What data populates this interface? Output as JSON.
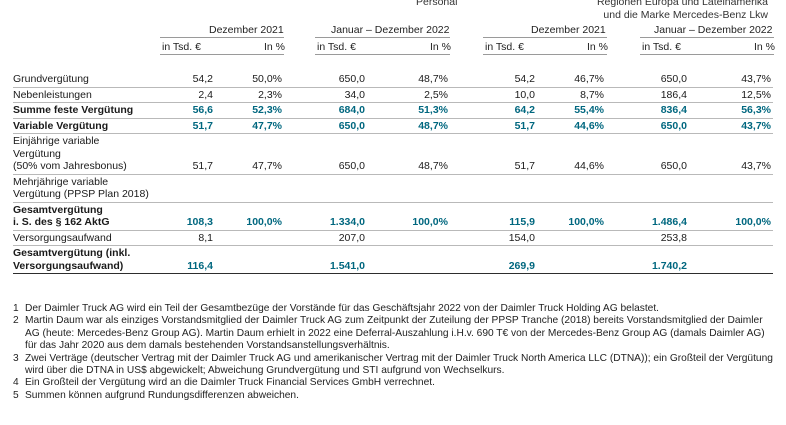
{
  "top_right_note": [
    "Regionen Europa und Lateinamerika",
    "und die Marke Mercedes-Benz Lkw"
  ],
  "top_partial": "Personal",
  "period_headers": [
    "Dezember 2021",
    "Januar – Dezember 2022",
    "Dezember 2021",
    "Januar – Dezember 2022"
  ],
  "unit_headers": [
    "in Tsd. €",
    "In %",
    "in Tsd. €",
    "In %",
    "in Tsd. €",
    "In %",
    "in Tsd. €",
    "In %"
  ],
  "rows": [
    {
      "label": [
        "Grundvergütung"
      ],
      "values": [
        "54,2",
        "50,0%",
        "650,0",
        "48,7%",
        "54,2",
        "46,7%",
        "650,0",
        "43,7%"
      ]
    },
    {
      "label": [
        "Nebenleistungen"
      ],
      "values": [
        "2,4",
        "2,3%",
        "34,0",
        "2,5%",
        "10,0",
        "8,7%",
        "186,4",
        "12,5%"
      ]
    },
    {
      "label": [
        "Summe feste Vergütung"
      ],
      "bold": true,
      "values": [
        "56,6",
        "52,3%",
        "684,0",
        "51,3%",
        "64,2",
        "55,4%",
        "836,4",
        "56,3%"
      ]
    },
    {
      "label": [
        "Variable Vergütung"
      ],
      "bold": true,
      "values": [
        "51,7",
        "47,7%",
        "650,0",
        "48,7%",
        "51,7",
        "44,6%",
        "650,0",
        "43,7%"
      ]
    },
    {
      "label": [
        "Einjährige variable",
        "Vergütung",
        "(50% vom Jahresbonus)"
      ],
      "values": [
        "51,7",
        "47,7%",
        "650,0",
        "48,7%",
        "51,7",
        "44,6%",
        "650,0",
        "43,7%"
      ]
    },
    {
      "label": [
        "Mehrjährige variable",
        "Vergütung (PPSP Plan 2018)"
      ],
      "values": [
        "",
        "",
        "",
        "",
        "",
        "",
        "",
        ""
      ]
    },
    {
      "label": [
        "Gesamtvergütung",
        "i. S. des § 162 AktG"
      ],
      "bold": true,
      "values": [
        "108,3",
        "100,0%",
        "1.334,0",
        "100,0%",
        "115,9",
        "100,0%",
        "1.486,4",
        "100,0%"
      ]
    },
    {
      "label": [
        "Versorgungsaufwand"
      ],
      "values": [
        "8,1",
        "",
        "207,0",
        "",
        "154,0",
        "",
        "253,8",
        ""
      ]
    },
    {
      "label": [
        "Gesamtvergütung (inkl.",
        "Versorgungsaufwand)"
      ],
      "bold": true,
      "values": [
        "116,4",
        "",
        "1.541,0",
        "",
        "269,9",
        "",
        "1.740,2",
        ""
      ]
    }
  ],
  "footnotes": [
    {
      "n": "1",
      "text": "Der Daimler Truck AG wird ein Teil der Gesamtbezüge der Vorstände für das Geschäftsjahr 2022 von der Daimler Truck Holding AG belastet."
    },
    {
      "n": "2",
      "text": "Martin Daum war als einziges Vorstandsmitglied der Daimler Truck AG zum Zeitpunkt der Zuteilung der PPSP Tranche (2018) bereits Vorstandsmitglied der Daimler AG (heute: Mercedes-Benz Group AG). Martin Daum erhielt in 2022 eine Deferral-Auszahlung i.H.v. 690 T€ von der Mercedes-Benz Group AG (damals Daimler AG) für das Jahr 2020 aus dem damals bestehenden Vorstandsanstellungsverhältnis."
    },
    {
      "n": "3",
      "text": "Zwei Verträge (deutscher Vertrag mit der Daimler Truck AG und amerikanischer Vertrag mit der Daimler Truck North America LLC (DTNA)); ein Großteil der Vergütung wird über die DTNA in US$ abgewickelt; Abweichung Grundvergütung und STI aufgrund von Wechselkurs."
    },
    {
      "n": "4",
      "text": "Ein Großteil der Vergütung wird an die Daimler Truck Financial Services GmbH verrechnet."
    },
    {
      "n": "5",
      "text": "Summen können aufgrund Rundungsdifferenzen abweichen."
    }
  ]
}
